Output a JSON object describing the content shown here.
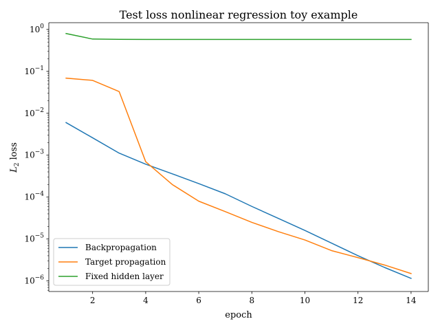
{
  "chart_data": {
    "type": "line",
    "title": "Test loss nonlinear regression toy example",
    "xlabel": "epoch",
    "ylabel": "L2 loss",
    "ylabel_math": {
      "base": "L",
      "sub": "2",
      "rest": "loss"
    },
    "yscale": "log",
    "xlim": [
      0.35,
      14.65
    ],
    "ylim": [
      5.6e-07,
      1.45
    ],
    "xticks": [
      2,
      4,
      6,
      8,
      10,
      12,
      14
    ],
    "yticks": [
      {
        "value": 1e-06,
        "base": "10",
        "exp": "−6"
      },
      {
        "value": 1e-05,
        "base": "10",
        "exp": "−5"
      },
      {
        "value": 0.0001,
        "base": "10",
        "exp": "−4"
      },
      {
        "value": 0.001,
        "base": "10",
        "exp": "−3"
      },
      {
        "value": 0.01,
        "base": "10",
        "exp": "−2"
      },
      {
        "value": 0.1,
        "base": "10",
        "exp": "−1"
      },
      {
        "value": 1,
        "base": "10",
        "exp": "0"
      }
    ],
    "grid": false,
    "legend_position": "lower-left",
    "x": [
      1,
      2,
      3,
      4,
      5,
      6,
      7,
      8,
      9,
      10,
      11,
      12,
      13,
      14
    ],
    "series": [
      {
        "name": "Backpropagation",
        "color": "#1f77b4",
        "values": [
          0.006,
          0.0026,
          0.00112,
          0.00061,
          0.00036,
          0.00021,
          0.00012,
          6e-05,
          3.1e-05,
          1.6e-05,
          8e-06,
          4e-06,
          2.1e-06,
          1.15e-06
        ]
      },
      {
        "name": "Target propagation",
        "color": "#ff7f0e",
        "values": [
          0.069,
          0.061,
          0.033,
          0.0007,
          0.0002,
          8e-05,
          4.5e-05,
          2.5e-05,
          1.5e-05,
          9.5e-06,
          5.3e-06,
          3.6e-06,
          2.4e-06,
          1.5e-06
        ]
      },
      {
        "name": "Fixed hidden layer",
        "color": "#2ca02c",
        "values": [
          0.8,
          0.59,
          0.58,
          0.578,
          0.578,
          0.578,
          0.578,
          0.578,
          0.578,
          0.578,
          0.578,
          0.578,
          0.578,
          0.578
        ]
      }
    ]
  }
}
